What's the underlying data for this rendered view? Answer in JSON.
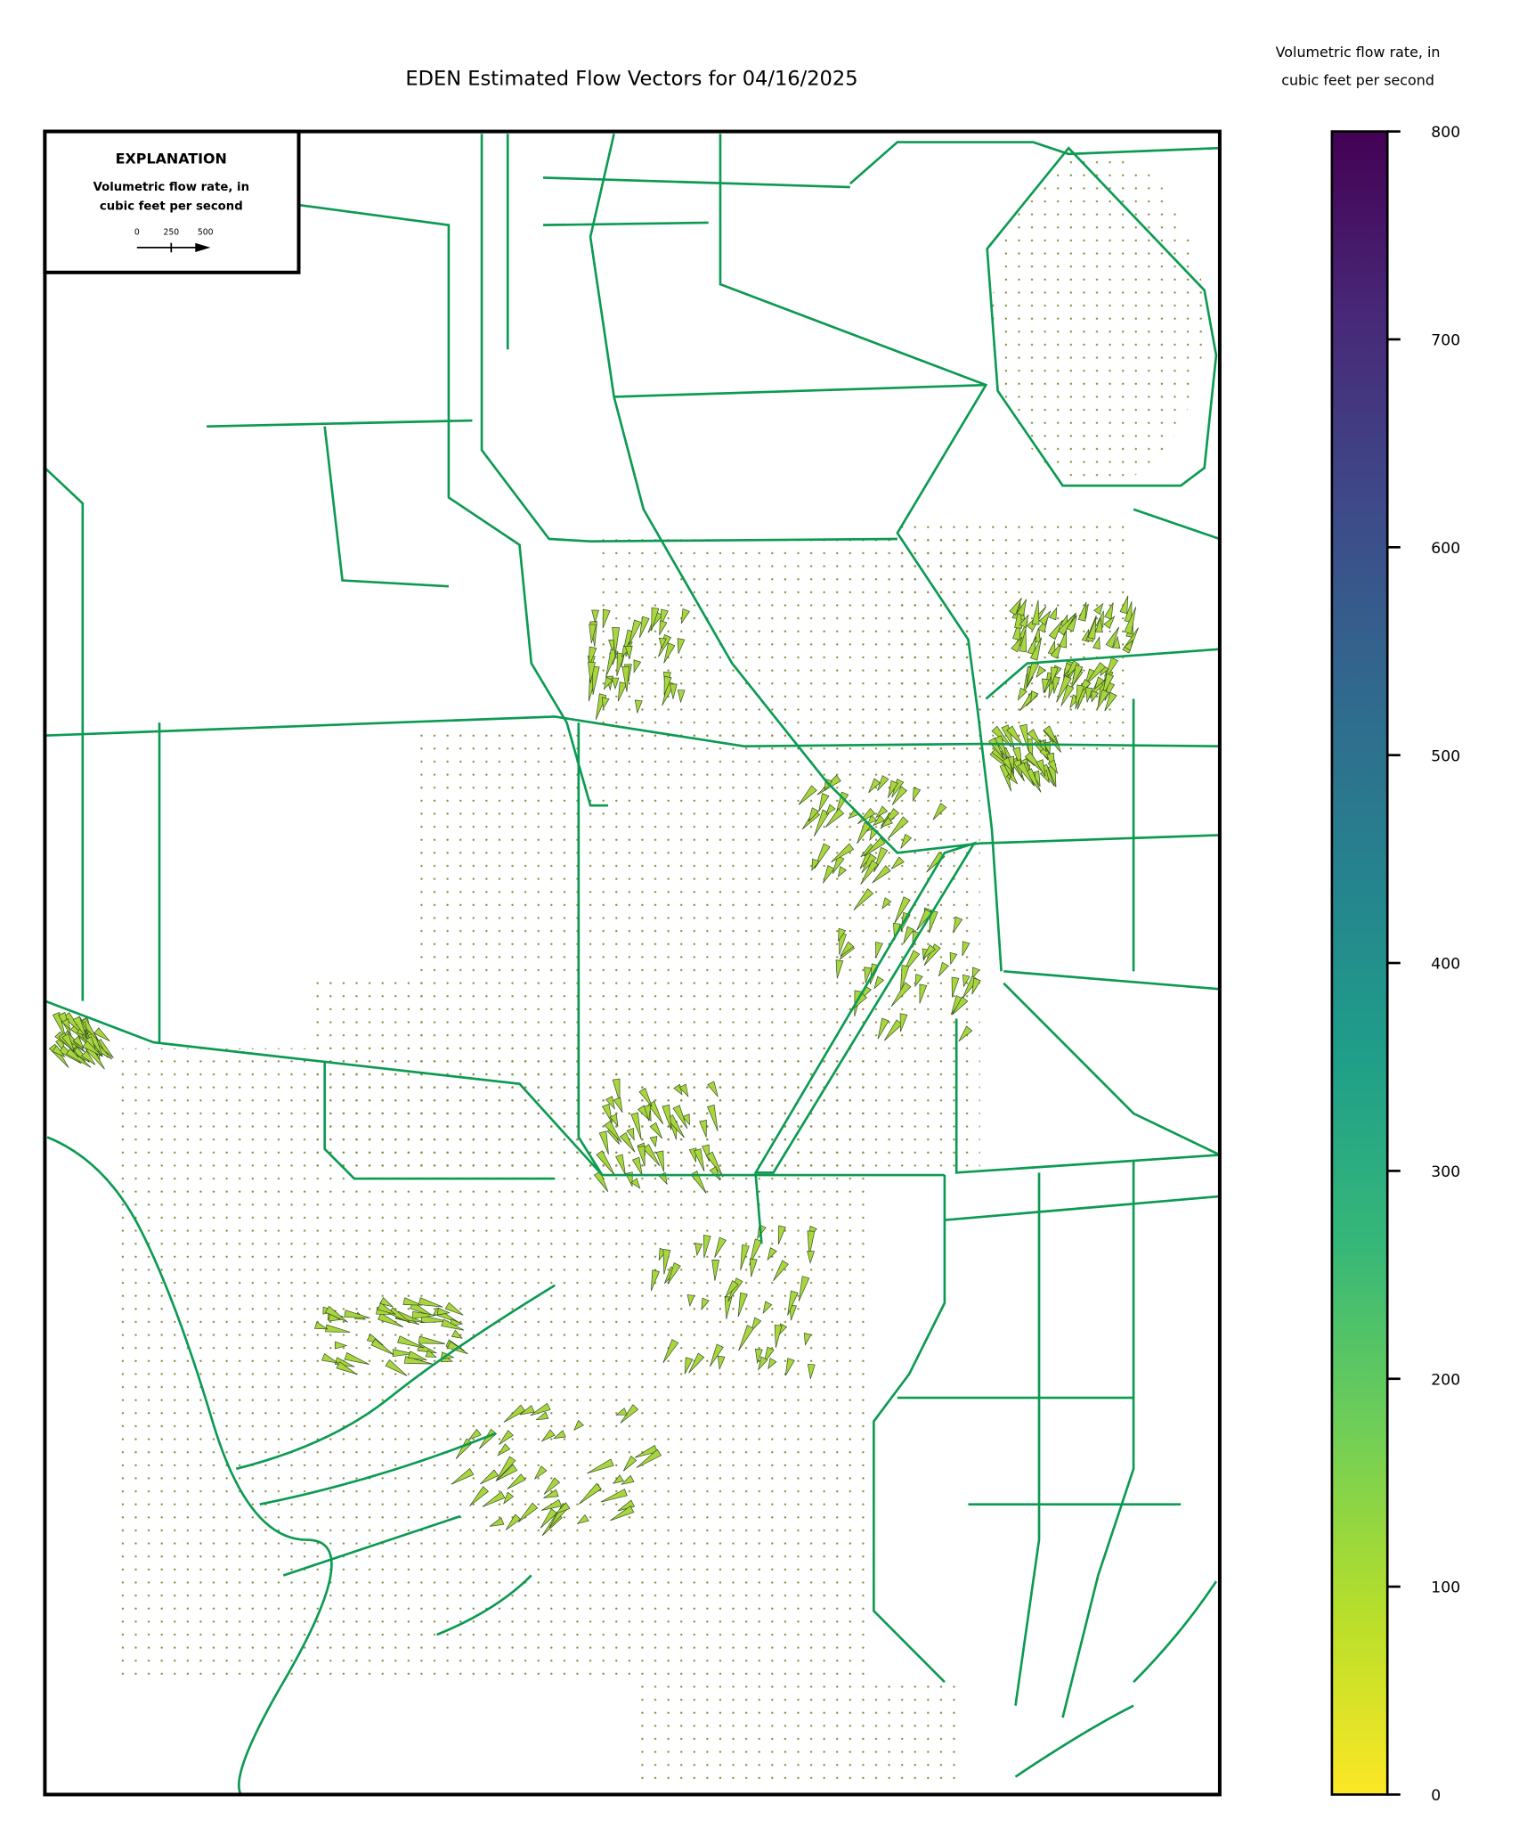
{
  "map": {
    "title": "EDEN Estimated Flow Vectors for 04/16/2025",
    "explanation": {
      "heading": "EXPLANATION",
      "label": [
        "Volumetric flow rate, in",
        "cubic feet per second"
      ],
      "scale_ticks": [
        0,
        250,
        500
      ]
    },
    "colorbar": {
      "label": [
        "Volumetric flow rate, in",
        "cubic feet per second"
      ],
      "ylim": [
        0,
        800
      ],
      "yticks": [
        0,
        100,
        200,
        300,
        400,
        500,
        600,
        700,
        800
      ],
      "colors": [
        "#fde725",
        "#b5de2b",
        "#6ece58",
        "#35b779",
        "#1f9e89",
        "#26828e",
        "#31688e",
        "#3e4989",
        "#482878",
        "#440154"
      ]
    }
  }
}
